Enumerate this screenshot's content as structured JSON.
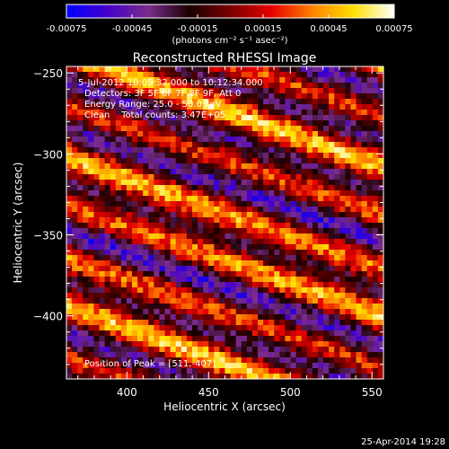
{
  "colorbar": {
    "ticks": [
      -0.00075,
      -0.00045,
      -0.00015,
      0.00015,
      0.00045,
      0.00075
    ],
    "tick_labels": [
      "-0.00075",
      "-0.00045",
      "-0.00015",
      "0.00015",
      "0.00045",
      "0.00075"
    ],
    "range": [
      -0.00075,
      0.00075
    ],
    "unit_label": "(photons cm⁻² s⁻¹ asec⁻²)",
    "colors": [
      "#0000ff",
      "#4400cc",
      "#7a2c8a",
      "#1a0000",
      "#7a0000",
      "#e60000",
      "#ff8000",
      "#ffe000",
      "#ffffff"
    ]
  },
  "chart_data": {
    "type": "heatmap",
    "title": "Reconstructed RHESSI Image",
    "xlabel": "Heliocentric X (arcsec)",
    "ylabel": "Heliocentric Y (arcsec)",
    "xlim": [
      363,
      557
    ],
    "ylim": [
      -439,
      -246
    ],
    "x_ticks": [
      400,
      450,
      500,
      550
    ],
    "y_ticks": [
      -250,
      -300,
      -350,
      -400
    ],
    "annotations": [
      "5-Jul-2012 10:09:32.000 to 10:12:34.000",
      "Detectors: 3F 5F 6F 7F 8F 9F, Att 0",
      "Energy Range: 25.0 - 50.0 keV",
      "Clean    Total counts: 3.47E+05",
      "Position of Peak = [511,-407]"
    ],
    "peak_position": [
      511,
      -407
    ],
    "pattern": "diagonal fringe stripes (positive/negative lobes) across the field of view"
  },
  "footer": {
    "timestamp": "25-Apr-2014 19:28"
  }
}
